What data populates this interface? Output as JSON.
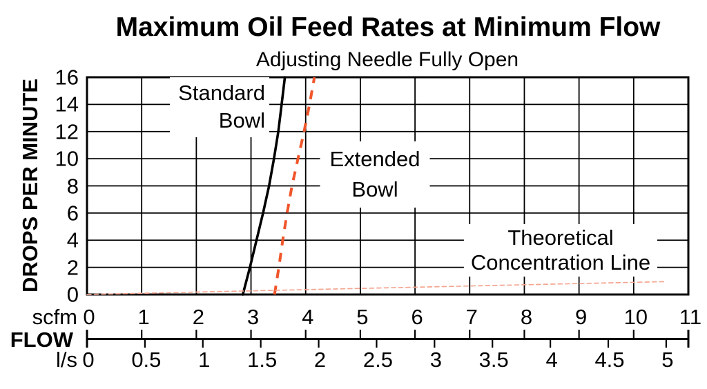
{
  "chart_data": {
    "type": "line",
    "title": "Maximum Oil Feed Rates at Minimum Flow",
    "subtitle": "Adjusting Needle Fully Open",
    "ylabel": "DROPS PER MINUTE",
    "xlabel_group": "FLOW",
    "xlim": [
      0,
      11
    ],
    "ylim": [
      0,
      16
    ],
    "grid": "on",
    "y_ticks": [
      0,
      2,
      4,
      6,
      8,
      10,
      12,
      14,
      16
    ],
    "x_units": [
      {
        "unit": "scfm",
        "ticks": [
          0,
          1,
          2,
          3,
          4,
          5,
          6,
          7,
          8,
          9,
          10,
          11
        ]
      },
      {
        "unit": "l/s",
        "ticks": [
          0,
          0.5,
          1,
          1.5,
          2,
          2.5,
          3,
          3.5,
          4,
          4.5,
          5
        ],
        "scfm_per_unit": 2.1189
      }
    ],
    "series": [
      {
        "name": "Standard Bowl",
        "line": "solid",
        "color": "#000000",
        "points": [
          [
            2.85,
            0
          ],
          [
            2.98,
            2
          ],
          [
            3.1,
            4
          ],
          [
            3.22,
            6
          ],
          [
            3.33,
            8
          ],
          [
            3.42,
            10
          ],
          [
            3.5,
            12
          ],
          [
            3.56,
            14
          ],
          [
            3.62,
            16
          ]
        ]
      },
      {
        "name": "Extended Bowl",
        "line": "dashed",
        "color": "#F0562B",
        "points": [
          [
            3.43,
            0
          ],
          [
            3.51,
            2
          ],
          [
            3.58,
            4
          ],
          [
            3.66,
            6
          ],
          [
            3.75,
            8
          ],
          [
            3.86,
            10
          ],
          [
            3.97,
            12
          ],
          [
            4.07,
            14
          ],
          [
            4.16,
            16
          ]
        ]
      },
      {
        "name": "Theoretical Concentration Line",
        "line": "fine-dashed",
        "color": "#F5A591",
        "points": [
          [
            0,
            0
          ],
          [
            10.59,
            0.95
          ]
        ]
      }
    ]
  },
  "annotations": [
    {
      "id": "standard-bowl-label",
      "lines": [
        "Standard",
        "Bowl"
      ]
    },
    {
      "id": "extended-bowl-label",
      "lines": [
        "Extended",
        "Bowl"
      ]
    },
    {
      "id": "theoretical-label",
      "lines": [
        "Theoretical",
        "Concentration Line"
      ]
    }
  ]
}
